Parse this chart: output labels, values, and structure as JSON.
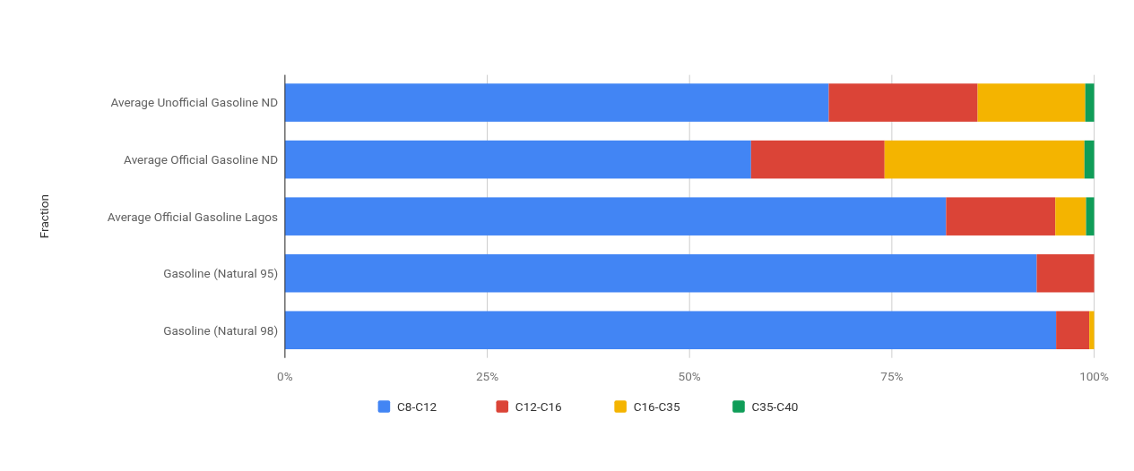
{
  "chart_data": {
    "type": "bar",
    "orientation": "horizontal",
    "stacked": true,
    "ylabel": "Fraction",
    "categories": [
      "Average Unofficial Gasoline ND",
      "Average Official Gasoline ND",
      "Average Official Gasoline Lagos",
      "Gasoline (Natural 95)",
      "Gasoline (Natural 98)"
    ],
    "series": [
      {
        "name": "C8-C12",
        "color": "#4285f4",
        "values": [
          67.2,
          57.6,
          81.7,
          92.9,
          95.3
        ]
      },
      {
        "name": "C12-C16",
        "color": "#db4437",
        "values": [
          18.4,
          16.5,
          13.5,
          7.1,
          4.1
        ]
      },
      {
        "name": "C16-C35",
        "color": "#f4b400",
        "values": [
          13.3,
          24.7,
          3.8,
          0,
          0.6
        ]
      },
      {
        "name": "C35-C40",
        "color": "#0f9d58",
        "values": [
          1.1,
          1.2,
          1.0,
          0,
          0
        ]
      }
    ],
    "xlim": [
      0,
      100
    ],
    "xticks": [
      {
        "value": 0,
        "label": "0%"
      },
      {
        "value": 25,
        "label": "25%"
      },
      {
        "value": 50,
        "label": "50%"
      },
      {
        "value": 75,
        "label": "75%"
      },
      {
        "value": 100,
        "label": "100%"
      }
    ],
    "grid": "x",
    "legend": "bottom"
  }
}
